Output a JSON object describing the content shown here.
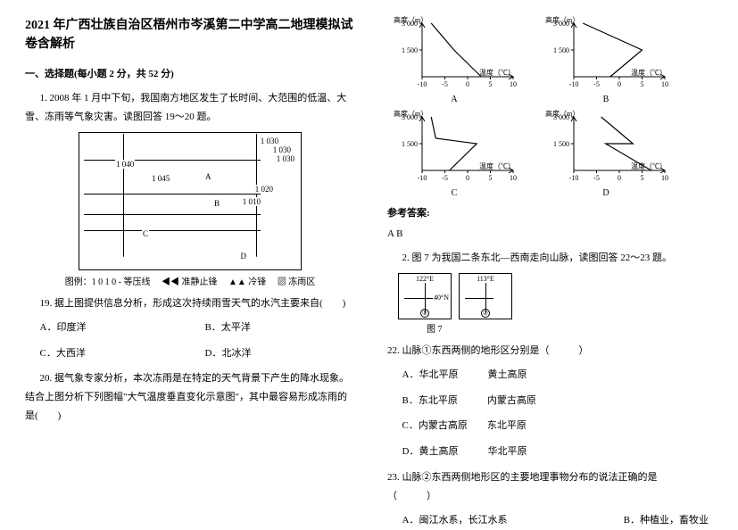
{
  "title": "2021 年广西壮族自治区梧州市岑溪第二中学高二地理模拟试卷含解析",
  "section1_head": "一、选择题(每小题 2 分，共 52 分)",
  "q1_intro": "1. 2008 年 1 月中下旬，我国南方地区发生了长时间、大范围的低温、大雪、冻雨等气象灾害。读图回答 19～20 题。",
  "map_labels": {
    "p1030a": "1 030",
    "p1030b": "1 030",
    "p1030c": "1 030",
    "p1040": "1 040",
    "p1045": "1 045",
    "p1020": "1 020",
    "p1010": "1 010",
    "A": "A",
    "B": "B",
    "C": "C",
    "D": "D"
  },
  "legend": "图例：1 0 1 0 - 等压线　 ◀◀ 准静止锋　 ▲▲ 冷锋　 ▨ 冻雨区",
  "q19": "19. 据上图提供信息分析，形成这次持续雨雪天气的水汽主要来自(　　)",
  "q19_opts": {
    "A": "A．印度洋",
    "B": "B．太平洋",
    "C": "C．大西洋",
    "D": "D．北冰洋"
  },
  "q20": "20. 据气象专家分析，本次冻雨是在特定的天气背景下产生的降水现象。结合上图分析下列图幅\"大气温度垂直变化示意图\"，其中最容易形成冻雨的是(　　)",
  "charts": {
    "ylabel": "高度（m）",
    "xlabel": "温度（℃）",
    "yticks": [
      3000,
      1500
    ],
    "xticks": [
      -10,
      -5,
      0,
      5,
      10
    ],
    "line_color": "#000000",
    "axis_color": "#000000",
    "A": {
      "label": "A",
      "pts": [
        [
          -8,
          3000
        ],
        [
          -3,
          1500
        ],
        [
          3,
          0
        ]
      ]
    },
    "B": {
      "label": "B",
      "pts": [
        [
          -8,
          3000
        ],
        [
          5,
          1500
        ],
        [
          -2,
          0
        ]
      ]
    },
    "C": {
      "label": "C",
      "pts": [
        [
          -8,
          3000
        ],
        [
          -7,
          1800
        ],
        [
          2,
          1500
        ],
        [
          -4,
          0
        ]
      ]
    },
    "D": {
      "label": "D",
      "pts": [
        [
          -4,
          3000
        ],
        [
          3,
          1500
        ],
        [
          -3,
          1500
        ],
        [
          7,
          0
        ]
      ]
    }
  },
  "answer_head": "参考答案:",
  "answer1": "A B",
  "q2_intro": "2. 图 7 为我国二条东北—西南走向山脉，读图回答 22～23 题。",
  "mini": {
    "lon1": "122°E",
    "lon2": "113°E",
    "lat": "40°N",
    "num1": "①",
    "num2": "②",
    "cap": "图 7"
  },
  "q22": "22. 山脉①东西两侧的地形区分别是（　　　）",
  "q22_opts": {
    "A": "A．华北平原　　　黄土高原",
    "B": "B．东北平原　　　内蒙古高原",
    "C": "C．内蒙古高原　　东北平原",
    "D": "D．黄土高原　　　华北平原"
  },
  "q23": "23. 山脉②东西两侧地形区的主要地理事物分布的说法正确的是　　　　　　　　　　　　　　　　　　　　　　　（　　　）",
  "q23_opts": {
    "A": "A．闽江水系，长江水系",
    "B": "B．种植业，畜牧业"
  }
}
